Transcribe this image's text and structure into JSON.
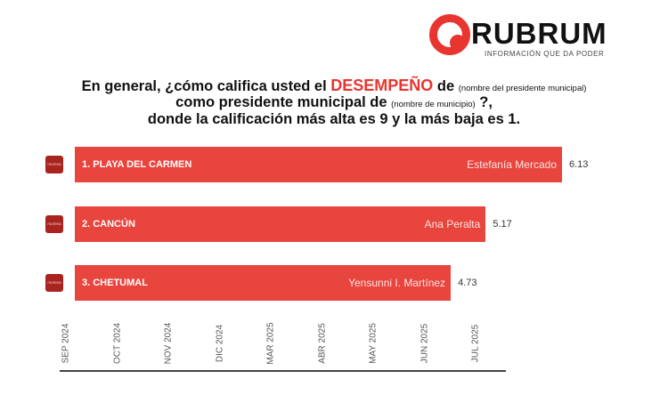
{
  "logo": {
    "name": "RUBRUM",
    "tagline": "INFORMACIÓN QUE DA PODER",
    "color": "#e8352f"
  },
  "question": {
    "line1_a": "En general, ¿cómo califica usted el ",
    "line1_highlight": "DESEMPEÑO",
    "line1_b": " de ",
    "line1_small": "(nombre del presidente municipal)",
    "line2_a": "como presidente municipal de ",
    "line2_small": "(nombre de municipio)",
    "line2_b": " ?,",
    "line3": "donde la calificación más alta es 9 y la más baja es 1."
  },
  "chart_data": {
    "type": "bar",
    "orientation": "horizontal",
    "categories": [
      "1. PLAYA DEL CARMEN",
      "2. CANCÚN",
      "3. CHETUMAL"
    ],
    "people": [
      "Estefanía Mercado",
      "Ana Peralta",
      "Yensunni I. Martínez"
    ],
    "party_badges": [
      "morena",
      "morena",
      "morena"
    ],
    "values": [
      6.13,
      5.17,
      4.73
    ],
    "value_labels": [
      "6.13",
      "5.17",
      "4.73"
    ],
    "xlim": [
      0,
      6.13
    ],
    "x_tick_labels": [
      "SEP 2024",
      "OCT 2024",
      "NOV 2024",
      "DIC 2024",
      "MAR 2025",
      "ABR 2025",
      "MAY 2025",
      "JUN 2025",
      "JUL 2025"
    ],
    "bar_color": "#e8453e",
    "grid": false
  }
}
